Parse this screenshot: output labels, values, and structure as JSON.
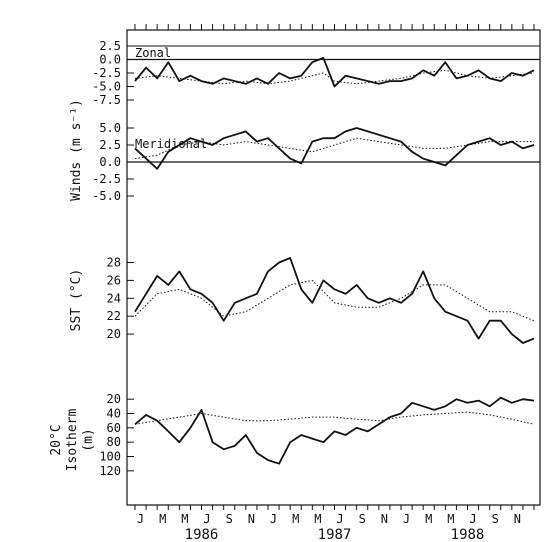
{
  "chart_data": {
    "type": "line",
    "months": [
      "J",
      "M",
      "M",
      "J",
      "S",
      "N",
      "J",
      "M",
      "M",
      "J",
      "S",
      "N",
      "J",
      "M",
      "M",
      "J",
      "S",
      "N"
    ],
    "years": [
      "1986",
      "1987",
      "1988"
    ],
    "panels": [
      {
        "id": "zonal",
        "title": "Zonal",
        "ylim": [
          -7.5,
          2.5
        ],
        "yticks": [
          "2.5",
          "0.0",
          "-2.5",
          "-5.0",
          "-7.5"
        ],
        "zero_line": true,
        "series": [
          {
            "style": "solid",
            "x": [
              0,
              1,
              2,
              3,
              4,
              5,
              6,
              7,
              8,
              9,
              10,
              11,
              12,
              13,
              14,
              15,
              16,
              17,
              18,
              19,
              20,
              21,
              22,
              23,
              24,
              25,
              26,
              27,
              28,
              29,
              30,
              31,
              32,
              33,
              34,
              35,
              36
            ],
            "values": [
              -4.0,
              -1.5,
              -3.5,
              -0.5,
              -4.0,
              -3.0,
              -4.0,
              -4.5,
              -3.5,
              -4.0,
              -4.5,
              -3.5,
              -4.5,
              -2.5,
              -3.5,
              -3.0,
              -0.5,
              0.3,
              -5.0,
              -3.0,
              -3.5,
              -4.0,
              -4.5,
              -4.0,
              -4.0,
              -3.5,
              -2.0,
              -3.0,
              -0.5,
              -3.5,
              -3.0,
              -2.0,
              -3.5,
              -4.0,
              -2.5,
              -3.0,
              -2.0
            ]
          },
          {
            "style": "dotted",
            "x": [
              0,
              2,
              4,
              6,
              8,
              10,
              12,
              14,
              16,
              17,
              18,
              20,
              22,
              24,
              26,
              28,
              30,
              32,
              34,
              36
            ],
            "values": [
              -3.5,
              -3.0,
              -3.5,
              -4.0,
              -4.5,
              -4.0,
              -4.5,
              -4.0,
              -3.0,
              -2.5,
              -4.0,
              -4.5,
              -4.0,
              -3.5,
              -2.5,
              -2.0,
              -3.0,
              -3.5,
              -3.0,
              -2.5
            ]
          }
        ]
      },
      {
        "id": "meridional",
        "title": "Meridional",
        "ylim": [
          -5.0,
          5.0
        ],
        "yticks": [
          "5.0",
          "2.5",
          "0.0",
          "-2.5",
          "-5.0"
        ],
        "zero_line": true,
        "series": [
          {
            "style": "solid",
            "x": [
              0,
              1,
              2,
              3,
              4,
              5,
              6,
              7,
              8,
              9,
              10,
              11,
              12,
              13,
              14,
              15,
              16,
              17,
              18,
              19,
              20,
              21,
              22,
              23,
              24,
              25,
              26,
              27,
              28,
              29,
              30,
              31,
              32,
              33,
              34,
              35,
              36
            ],
            "values": [
              2.0,
              0.5,
              -1.0,
              1.5,
              2.5,
              3.5,
              3.0,
              2.5,
              3.5,
              4.0,
              4.5,
              3.0,
              3.5,
              2.0,
              0.5,
              -0.2,
              3.0,
              3.5,
              3.5,
              4.5,
              5.0,
              4.5,
              4.0,
              3.5,
              3.0,
              1.5,
              0.5,
              0.0,
              -0.5,
              1.0,
              2.5,
              3.0,
              3.5,
              2.5,
              3.0,
              2.0,
              2.5
            ]
          },
          {
            "style": "dotted",
            "x": [
              0,
              2,
              4,
              6,
              8,
              10,
              12,
              14,
              16,
              18,
              20,
              22,
              24,
              26,
              28,
              30,
              32,
              34,
              36
            ],
            "values": [
              0.5,
              1.0,
              2.5,
              3.0,
              2.5,
              3.0,
              2.5,
              2.0,
              1.5,
              2.5,
              3.5,
              3.0,
              2.5,
              2.0,
              2.0,
              2.5,
              3.0,
              3.0,
              3.0
            ]
          }
        ]
      },
      {
        "id": "sst",
        "title": "",
        "ylabel": "SST (°C)",
        "ylim": [
          18,
          28.5
        ],
        "yticks": [
          "28",
          "26",
          "24",
          "22",
          "20"
        ],
        "zero_line": false,
        "series": [
          {
            "style": "solid",
            "x": [
              0,
              1,
              2,
              3,
              4,
              5,
              6,
              7,
              8,
              9,
              10,
              11,
              12,
              13,
              14,
              15,
              16,
              17,
              18,
              19,
              20,
              21,
              22,
              23,
              24,
              25,
              26,
              27,
              28,
              29,
              30,
              31,
              32,
              33,
              34,
              35,
              36
            ],
            "values": [
              22.5,
              24.5,
              26.5,
              25.5,
              27.0,
              25.0,
              24.5,
              23.5,
              21.5,
              23.5,
              24.0,
              24.5,
              27.0,
              28.0,
              28.5,
              25.0,
              23.5,
              26.0,
              25.0,
              24.5,
              25.5,
              24.0,
              23.5,
              24.0,
              23.5,
              24.5,
              27.0,
              24.0,
              22.5,
              22.0,
              21.5,
              19.5,
              21.5,
              21.5,
              20.0,
              19.0,
              19.5
            ]
          },
          {
            "style": "dotted",
            "x": [
              0,
              2,
              4,
              6,
              8,
              10,
              12,
              14,
              16,
              18,
              20,
              22,
              24,
              26,
              28,
              30,
              32,
              34,
              36
            ],
            "values": [
              22.0,
              24.5,
              25.0,
              24.0,
              22.0,
              22.5,
              24.0,
              25.5,
              26.0,
              23.5,
              23.0,
              23.0,
              24.0,
              25.5,
              25.5,
              24.0,
              22.5,
              22.5,
              21.5
            ]
          }
        ]
      },
      {
        "id": "isotherm",
        "title": "",
        "ylabel": "20°C Isotherm (m)",
        "ylim": [
          130,
          10
        ],
        "yticks": [
          "20",
          "40",
          "60",
          "80",
          "100",
          "120"
        ],
        "zero_line": false,
        "series": [
          {
            "style": "solid",
            "x": [
              0,
              1,
              2,
              3,
              4,
              5,
              6,
              7,
              8,
              9,
              10,
              11,
              12,
              13,
              14,
              15,
              16,
              17,
              18,
              19,
              20,
              21,
              22,
              23,
              24,
              25,
              26,
              27,
              28,
              29,
              30,
              31,
              32,
              33,
              34,
              35,
              36
            ],
            "values": [
              55,
              42,
              50,
              65,
              80,
              60,
              35,
              80,
              90,
              85,
              70,
              95,
              105,
              110,
              80,
              70,
              75,
              80,
              65,
              70,
              60,
              65,
              55,
              45,
              40,
              25,
              30,
              35,
              30,
              20,
              25,
              22,
              30,
              18,
              25,
              20,
              22
            ]
          },
          {
            "style": "dotted",
            "x": [
              0,
              2,
              4,
              6,
              8,
              10,
              12,
              14,
              16,
              18,
              20,
              22,
              24,
              26,
              28,
              30,
              32,
              34,
              36
            ],
            "values": [
              55,
              50,
              45,
              40,
              45,
              50,
              50,
              48,
              45,
              45,
              48,
              50,
              45,
              42,
              40,
              38,
              42,
              48,
              55
            ]
          }
        ]
      }
    ],
    "shared_ylabel": "Winds (m s⁻¹)"
  }
}
